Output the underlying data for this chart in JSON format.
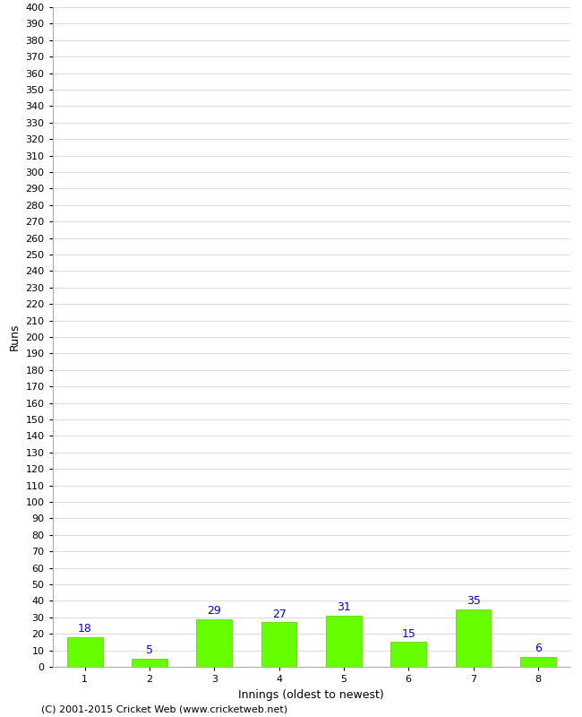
{
  "title": "",
  "categories": [
    "1",
    "2",
    "3",
    "4",
    "5",
    "6",
    "7",
    "8"
  ],
  "values": [
    18,
    5,
    29,
    27,
    31,
    15,
    35,
    6
  ],
  "bar_color": "#66ff00",
  "bar_edge_color": "#55cc00",
  "label_color": "#0000cc",
  "xlabel": "Innings (oldest to newest)",
  "ylabel": "Runs",
  "ylim": [
    0,
    400
  ],
  "grid_color": "#cccccc",
  "bg_color": "#ffffff",
  "footer": "(C) 2001-2015 Cricket Web (www.cricketweb.net)",
  "label_fontsize": 9,
  "tick_fontsize": 8,
  "footer_fontsize": 8,
  "value_label_fontsize": 9
}
